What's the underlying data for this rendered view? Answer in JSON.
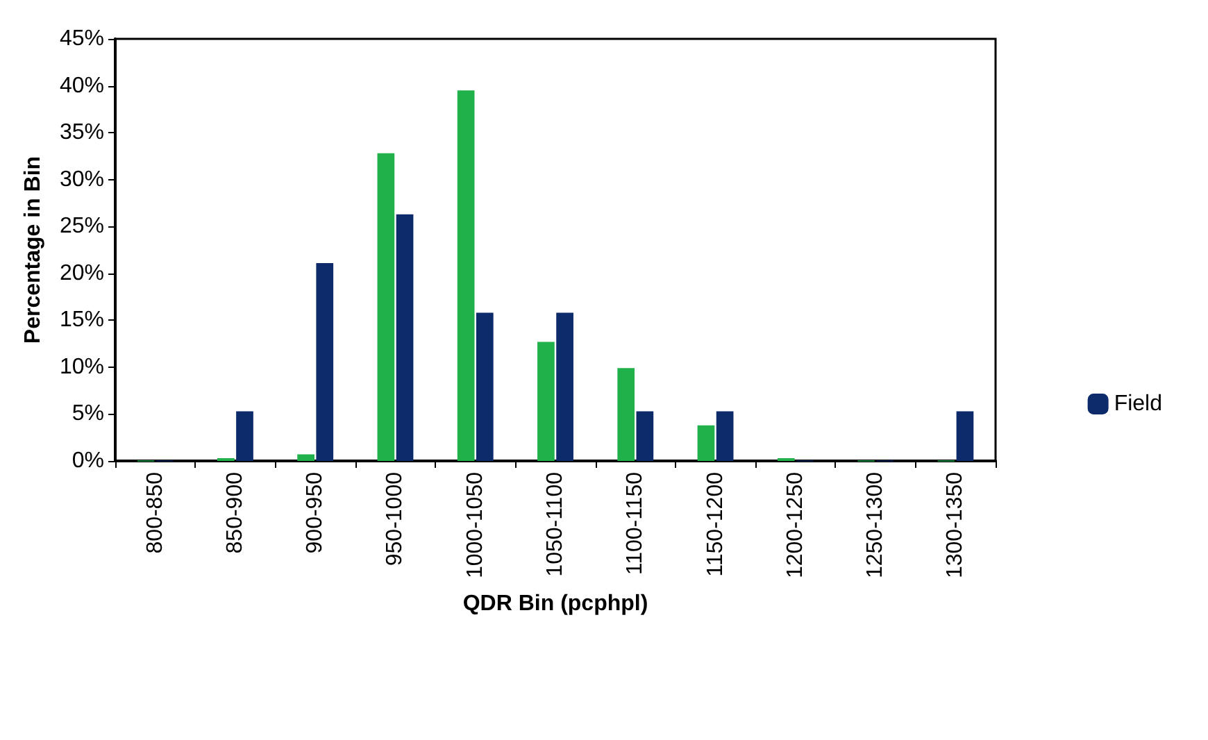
{
  "chart_data": {
    "type": "bar",
    "xlabel": "QDR Bin (pcphpl)",
    "ylabel": "Percentage in Bin",
    "categories": [
      "800-850",
      "850-900",
      "900-950",
      "950-1000",
      "1000-1050",
      "1050-1100",
      "1100-1150",
      "1150-1200",
      "1200-1250",
      "1250-1300",
      "1300-1350"
    ],
    "series": [
      {
        "color": "#21b14b",
        "values": [
          0,
          0.3,
          0.7,
          32.8,
          39.5,
          12.7,
          9.9,
          3.8,
          0.3,
          0,
          0
        ]
      },
      {
        "name": "Field",
        "color": "#0d2a6b",
        "values": [
          0,
          5.3,
          21.1,
          26.3,
          15.8,
          15.8,
          5.3,
          5.3,
          0,
          0,
          5.3
        ]
      }
    ],
    "ylim": [
      0,
      45
    ],
    "yticks": [
      {
        "value": 0,
        "label": "0%"
      },
      {
        "value": 5,
        "label": "5%"
      },
      {
        "value": 10,
        "label": "10%"
      },
      {
        "value": 15,
        "label": "15%"
      },
      {
        "value": 20,
        "label": "20%"
      },
      {
        "value": 25,
        "label": "25%"
      },
      {
        "value": 30,
        "label": "30%"
      },
      {
        "value": 35,
        "label": "35%"
      },
      {
        "value": 40,
        "label": "40%"
      },
      {
        "value": 45,
        "label": "45%"
      }
    ],
    "grid": false,
    "legend": "right"
  }
}
